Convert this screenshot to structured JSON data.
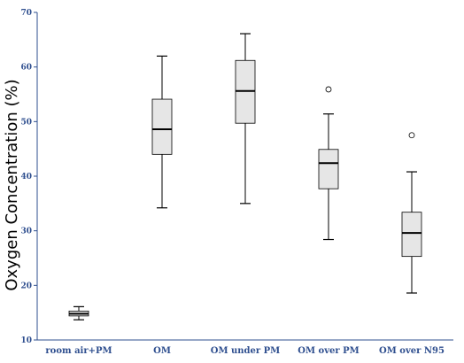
{
  "chart_data": {
    "type": "box",
    "ylabel": "Oxygen Concentration (%)",
    "xlabel": "",
    "ylim": [
      10,
      70
    ],
    "yticks": [
      "10",
      "20",
      "30",
      "40",
      "50",
      "60",
      "70"
    ],
    "grid": false,
    "colors": {
      "axis": "#2f4f8f",
      "box_fill": "#e6e6e6",
      "stroke": "#000000"
    },
    "categories": [
      "room air+PM",
      "OM",
      "OM under PM",
      "OM over PM",
      "OM over N95"
    ],
    "boxes": [
      {
        "min": 13.7,
        "q1": 14.4,
        "median": 14.8,
        "q3": 15.3,
        "max": 16.1,
        "outliers": []
      },
      {
        "min": 34.2,
        "q1": 44.0,
        "median": 48.6,
        "q3": 54.1,
        "max": 62.0,
        "outliers": []
      },
      {
        "min": 35.0,
        "q1": 49.7,
        "median": 55.6,
        "q3": 61.2,
        "max": 66.1,
        "outliers": []
      },
      {
        "min": 28.4,
        "q1": 37.7,
        "median": 42.4,
        "q3": 44.9,
        "max": 51.4,
        "outliers": [
          55.9
        ]
      },
      {
        "min": 18.6,
        "q1": 25.3,
        "median": 29.6,
        "q3": 33.4,
        "max": 40.8,
        "outliers": [
          47.5
        ]
      }
    ]
  }
}
